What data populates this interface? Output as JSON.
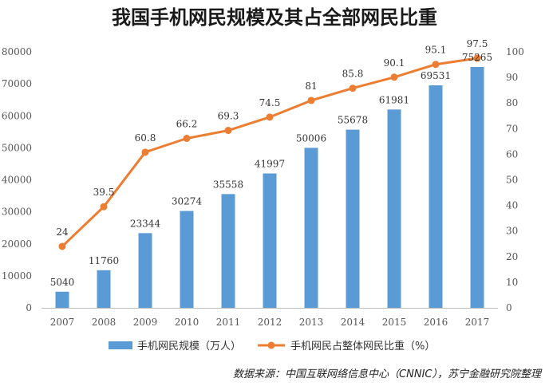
{
  "chart_data": {
    "type": "bar+line",
    "title": "我国手机网民规模及其占全部网民比重",
    "categories": [
      "2007",
      "2008",
      "2009",
      "2010",
      "2011",
      "2012",
      "2013",
      "2014",
      "2015",
      "2016",
      "2017"
    ],
    "series": [
      {
        "name": "手机网民规模（万人）",
        "type": "bar",
        "axis": "left",
        "values": [
          5040,
          11760,
          23344,
          30274,
          35558,
          41997,
          50006,
          55678,
          61981,
          69531,
          75265
        ]
      },
      {
        "name": "手机网民占整体网民比重（%）",
        "type": "line",
        "axis": "right",
        "values": [
          24,
          39.5,
          60.8,
          66.2,
          69.3,
          74.5,
          81,
          85.8,
          90.1,
          95.1,
          97.5
        ]
      }
    ],
    "yleft": {
      "min": 0,
      "max": 80000,
      "step": 10000,
      "ticks": [
        "0",
        "10000",
        "20000",
        "30000",
        "40000",
        "50000",
        "60000",
        "70000",
        "80000"
      ]
    },
    "yright": {
      "min": 0,
      "max": 100,
      "step": 10,
      "ticks": [
        "0",
        "10",
        "20",
        "30",
        "40",
        "50",
        "60",
        "70",
        "80",
        "90",
        "100"
      ]
    },
    "grid": false,
    "legend_position": "bottom",
    "colors": {
      "bar": "#5b9bd5",
      "line": "#ed7d31"
    }
  },
  "source_note": "数据来源：中国互联网络信息中心（CNNIC），苏宁金融研究院整理"
}
